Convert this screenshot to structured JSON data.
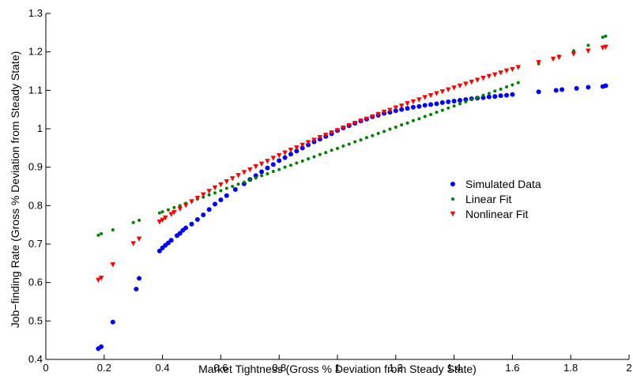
{
  "chart_data": {
    "type": "scatter",
    "xlabel": "Market Tightness (Gross % Deviation from Steady State)",
    "ylabel": "Job−finding Rate (Gross % Deviation from Steady State)",
    "xlim": [
      0,
      2
    ],
    "ylim": [
      0.4,
      1.3
    ],
    "xticks": [
      0,
      0.2,
      0.4,
      0.6,
      0.8,
      1,
      1.2,
      1.4,
      1.6,
      1.8,
      2
    ],
    "yticks": [
      0.4,
      0.5,
      0.6,
      0.7,
      0.8,
      0.9,
      1,
      1.1,
      1.2,
      1.3
    ],
    "grid": false,
    "legend_position": "right",
    "series": [
      {
        "name": "Simulated Data",
        "color": "#0000ff",
        "marker": "circle",
        "x": [
          0.18,
          0.19,
          0.23,
          0.31,
          0.32,
          0.39,
          0.4,
          0.41,
          0.42,
          0.43,
          0.45,
          0.46,
          0.47,
          0.48,
          0.5,
          0.52,
          0.54,
          0.56,
          0.58,
          0.6,
          0.62,
          0.65,
          0.68,
          0.7,
          0.72,
          0.74,
          0.76,
          0.78,
          0.8,
          0.82,
          0.84,
          0.86,
          0.88,
          0.9,
          0.92,
          0.94,
          0.96,
          0.98,
          1.0,
          1.02,
          1.04,
          1.06,
          1.08,
          1.1,
          1.12,
          1.14,
          1.16,
          1.18,
          1.2,
          1.22,
          1.24,
          1.26,
          1.28,
          1.3,
          1.32,
          1.34,
          1.36,
          1.38,
          1.4,
          1.42,
          1.44,
          1.46,
          1.48,
          1.5,
          1.52,
          1.54,
          1.56,
          1.58,
          1.6,
          1.69,
          1.75,
          1.77,
          1.82,
          1.86,
          1.91,
          1.92
        ],
        "y": [
          0.428,
          0.433,
          0.497,
          0.583,
          0.611,
          0.682,
          0.69,
          0.697,
          0.703,
          0.71,
          0.722,
          0.728,
          0.736,
          0.742,
          0.752,
          0.764,
          0.776,
          0.79,
          0.804,
          0.815,
          0.826,
          0.842,
          0.857,
          0.868,
          0.878,
          0.888,
          0.898,
          0.907,
          0.917,
          0.925,
          0.934,
          0.942,
          0.95,
          0.958,
          0.966,
          0.973,
          0.98,
          0.987,
          0.995,
          1.002,
          1.008,
          1.014,
          1.02,
          1.025,
          1.031,
          1.035,
          1.04,
          1.043,
          1.047,
          1.05,
          1.053,
          1.056,
          1.058,
          1.061,
          1.063,
          1.065,
          1.068,
          1.07,
          1.072,
          1.074,
          1.076,
          1.078,
          1.08,
          1.081,
          1.083,
          1.084,
          1.086,
          1.087,
          1.089,
          1.096,
          1.1,
          1.102,
          1.105,
          1.108,
          1.11,
          1.112
        ]
      },
      {
        "name": "Linear Fit",
        "color": "#008000",
        "marker": "dot",
        "x": [
          0.18,
          0.19,
          0.23,
          0.3,
          0.32,
          0.39,
          0.4,
          0.42,
          0.44,
          0.46,
          0.48,
          0.5,
          0.52,
          0.54,
          0.56,
          0.58,
          0.6,
          0.62,
          0.64,
          0.66,
          0.68,
          0.7,
          0.72,
          0.74,
          0.76,
          0.78,
          0.8,
          0.82,
          0.84,
          0.86,
          0.88,
          0.9,
          0.92,
          0.94,
          0.96,
          0.98,
          1.0,
          1.02,
          1.04,
          1.06,
          1.08,
          1.1,
          1.12,
          1.14,
          1.16,
          1.18,
          1.2,
          1.22,
          1.24,
          1.26,
          1.28,
          1.3,
          1.32,
          1.34,
          1.36,
          1.38,
          1.4,
          1.42,
          1.44,
          1.46,
          1.48,
          1.5,
          1.52,
          1.54,
          1.56,
          1.58,
          1.6,
          1.62,
          1.69,
          1.74,
          1.76,
          1.81,
          1.86,
          1.91,
          1.92
        ],
        "y": [
          0.723,
          0.727,
          0.737,
          0.756,
          0.762,
          0.781,
          0.784,
          0.789,
          0.795,
          0.8,
          0.806,
          0.811,
          0.817,
          0.822,
          0.828,
          0.833,
          0.839,
          0.845,
          0.85,
          0.856,
          0.861,
          0.867,
          0.872,
          0.878,
          0.883,
          0.889,
          0.894,
          0.9,
          0.905,
          0.911,
          0.916,
          0.922,
          0.927,
          0.933,
          0.938,
          0.944,
          0.949,
          0.955,
          0.96,
          0.966,
          0.971,
          0.977,
          0.982,
          0.988,
          0.993,
          0.999,
          1.004,
          1.01,
          1.015,
          1.021,
          1.026,
          1.032,
          1.037,
          1.043,
          1.048,
          1.054,
          1.059,
          1.065,
          1.07,
          1.076,
          1.081,
          1.087,
          1.092,
          1.098,
          1.103,
          1.109,
          1.114,
          1.12,
          1.169,
          1.183,
          1.189,
          1.203,
          1.217,
          1.238,
          1.241
        ]
      },
      {
        "name": "Nonlinear Fit",
        "color": "#ff0000",
        "marker": "triangle-down",
        "x": [
          0.18,
          0.19,
          0.23,
          0.3,
          0.32,
          0.39,
          0.4,
          0.41,
          0.43,
          0.44,
          0.46,
          0.48,
          0.5,
          0.52,
          0.54,
          0.56,
          0.58,
          0.6,
          0.62,
          0.64,
          0.66,
          0.68,
          0.7,
          0.72,
          0.74,
          0.76,
          0.78,
          0.8,
          0.82,
          0.84,
          0.86,
          0.88,
          0.9,
          0.92,
          0.94,
          0.96,
          0.98,
          1.0,
          1.02,
          1.04,
          1.06,
          1.08,
          1.1,
          1.12,
          1.14,
          1.16,
          1.18,
          1.2,
          1.22,
          1.24,
          1.26,
          1.28,
          1.3,
          1.32,
          1.34,
          1.36,
          1.38,
          1.4,
          1.42,
          1.44,
          1.46,
          1.48,
          1.5,
          1.52,
          1.54,
          1.56,
          1.58,
          1.6,
          1.62,
          1.69,
          1.74,
          1.76,
          1.81,
          1.86,
          1.91,
          1.92
        ],
        "y": [
          0.606,
          0.611,
          0.646,
          0.701,
          0.713,
          0.757,
          0.762,
          0.768,
          0.777,
          0.782,
          0.791,
          0.8,
          0.81,
          0.819,
          0.828,
          0.837,
          0.846,
          0.854,
          0.862,
          0.87,
          0.878,
          0.886,
          0.893,
          0.901,
          0.908,
          0.915,
          0.923,
          0.93,
          0.937,
          0.944,
          0.95,
          0.957,
          0.964,
          0.97,
          0.977,
          0.983,
          0.989,
          0.995,
          1.002,
          1.008,
          1.014,
          1.02,
          1.025,
          1.031,
          1.037,
          1.043,
          1.048,
          1.054,
          1.059,
          1.065,
          1.07,
          1.075,
          1.081,
          1.086,
          1.091,
          1.096,
          1.101,
          1.106,
          1.111,
          1.116,
          1.121,
          1.126,
          1.131,
          1.136,
          1.14,
          1.145,
          1.15,
          1.154,
          1.159,
          1.172,
          1.181,
          1.185,
          1.194,
          1.202,
          1.21,
          1.212
        ]
      }
    ]
  }
}
